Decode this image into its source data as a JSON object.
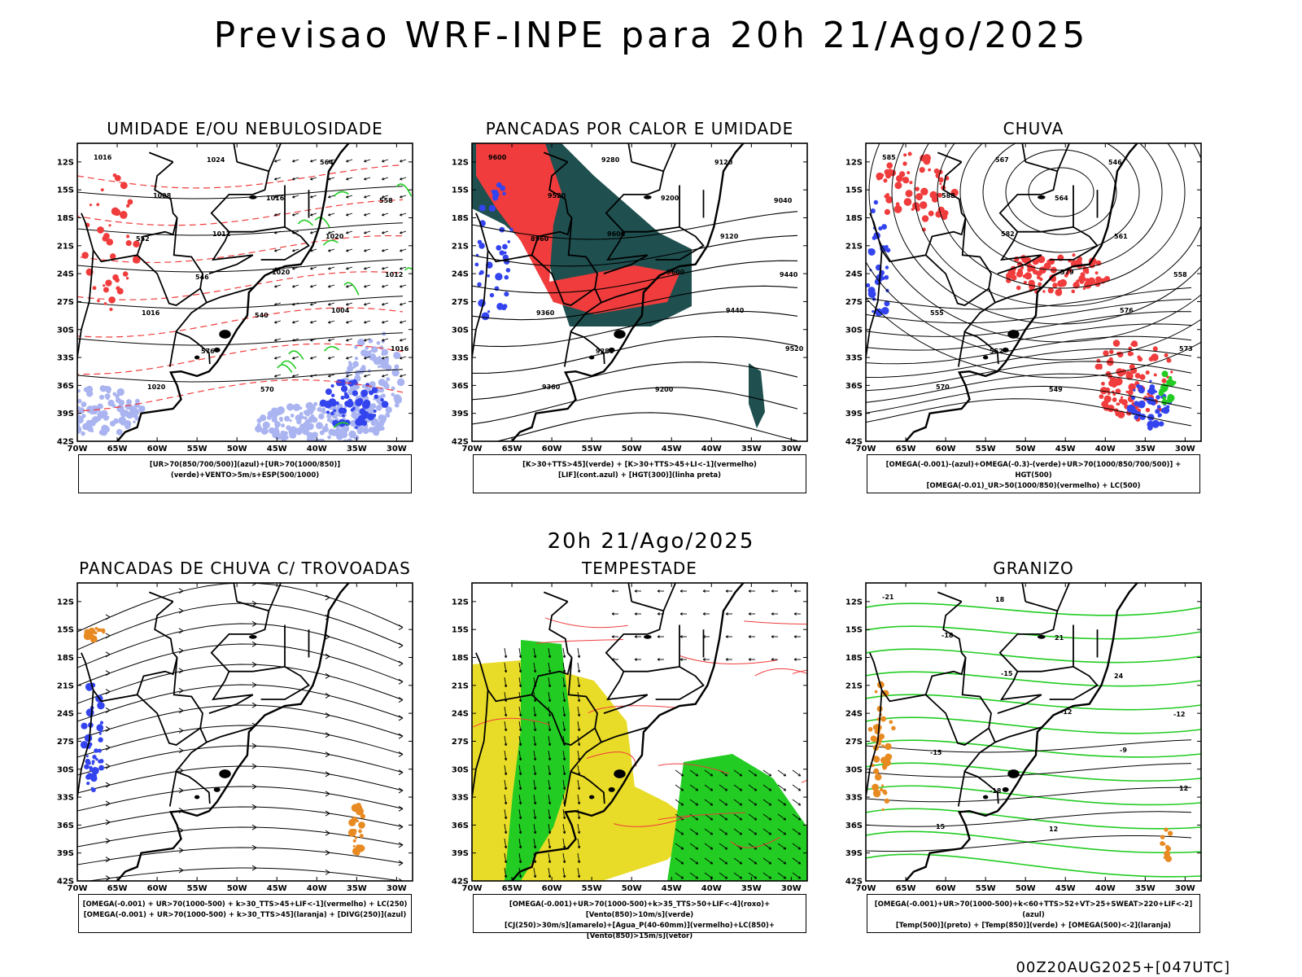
{
  "title": "Previsao WRF-INPE  para 20h 21/Ago/2025",
  "mid_time": "20h 21/Ago/2025",
  "footer_stamp": "00Z20AUG2025+[047UTC]",
  "lat_ticks": [
    "12S",
    "15S",
    "18S",
    "21S",
    "24S",
    "27S",
    "30S",
    "33S",
    "36S",
    "39S",
    "42S"
  ],
  "lon_ticks": [
    "70W",
    "65W",
    "60W",
    "55W",
    "50W",
    "45W",
    "40W",
    "35W",
    "30W"
  ],
  "colors": {
    "red": "#f03c3c",
    "green": "#22cc22",
    "blue": "#3344ee",
    "lightblue": "#aab4f0",
    "darkteal": "#1f4f4f",
    "yellow": "#e8dc28",
    "orange": "#e88a22",
    "black": "#000000"
  },
  "panels": [
    {
      "id": "umidade",
      "title": "UMIDADE E/OU NEBULOSIDADE",
      "legend": [
        "[UR>70(850/700/500)](azul)+[UR>70(1000/850)](verde)+VENTO>5m/s+ESP(500/1000)"
      ],
      "contour_labels": [
        "1016",
        "1008",
        "1012",
        "1020",
        "1004",
        "1016",
        "1020",
        "1024",
        "1016",
        "1020",
        "1012",
        "1016",
        "576",
        "570",
        "564",
        "558",
        "552",
        "546",
        "540"
      ]
    },
    {
      "id": "pancadas-calor",
      "title": "PANCADAS POR CALOR E UMIDADE",
      "legend": [
        "[K>30+TTS>45](verde) + [K>30+TTS>45+LI<-1](vermelho)",
        "[LIF](cont.azul) + [HGT(300)](linha preta)"
      ],
      "contour_labels": [
        "9600",
        "9520",
        "9600",
        "9600",
        "9440",
        "9520",
        "9360",
        "9280",
        "9200",
        "9120",
        "9440",
        "9360",
        "9280",
        "9200",
        "9120",
        "9040",
        "8960"
      ]
    },
    {
      "id": "chuva",
      "title": "CHUVA",
      "legend": [
        "[OMEGA(-0.001)-(azul)+OMEGA(-0.3)-(verde)+UR>70(1000/850/700/500)] + HGT(500)",
        "[OMEGA(-0.01)_UR>50(1000/850)(vermelho) + LC(500)"
      ],
      "contour_labels": [
        "585",
        "588",
        "582",
        "579",
        "576",
        "573",
        "570",
        "567",
        "564",
        "561",
        "558",
        "555",
        "552",
        "549",
        "546"
      ]
    },
    {
      "id": "pancadas-trovoadas",
      "title": "PANCADAS DE CHUVA C/ TROVOADAS",
      "legend": [
        "[OMEGA(-0.001) + UR>70(1000-500) + k>30_TTS>45+LIF<-1](vermelho) + LC(250)",
        "[OMEGA(-0.001) + UR>70(1000-500) + k>30_TTS>45](laranja) + [DIVG(250)](azul)"
      ],
      "contour_labels": []
    },
    {
      "id": "tempestade",
      "title": "TEMPESTADE",
      "legend": [
        "[OMEGA(-0.001)+UR>70(1000-500)+k>35_TTS>50+LIF<-4](roxo)+[Vento(850)>10m/s](verde)",
        "[CJ(250)>30m/s](amarelo)+[Agua_P(40-60mm)](vermelho)+LC(850)+[Vento(850)>15m/s](vetor)"
      ],
      "contour_labels": []
    },
    {
      "id": "granizo",
      "title": "GRANIZO",
      "legend": [
        "[OMEGA(-0.001)+UR>70(1000-500)+k<60+TTS>52+VT>25+SWEAT>220+LIF<-2](azul)",
        "[Temp(500)](preto) + [Temp(850)](verde) + [OMEGA(500)<-2](laranja)"
      ],
      "contour_labels": [
        "-21",
        "-18",
        "-15",
        "-12",
        "-9",
        "12",
        "15",
        "18",
        "21",
        "24",
        "-12",
        "-15",
        "-18",
        "12"
      ]
    }
  ]
}
